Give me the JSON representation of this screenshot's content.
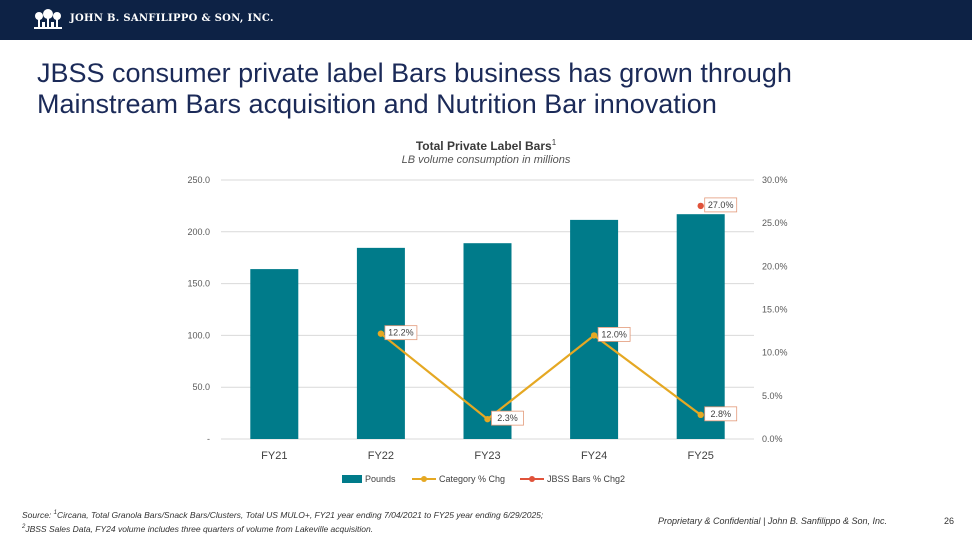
{
  "header": {
    "company": "JOHN B. SANFILIPPO & SON, INC.",
    "logo_icon": "tree-logo-icon"
  },
  "slide": {
    "title_line1": "JBSS consumer private label Bars business has grown through",
    "title_line2": "Mainstream Bars acquisition and Nutrition Bar innovation"
  },
  "chart_data": {
    "type": "bar",
    "title": "Total Private Label Bars",
    "title_superscript": "1",
    "subtitle": "LB volume consumption in millions",
    "categories": [
      "FY21",
      "FY22",
      "FY23",
      "FY24",
      "FY25"
    ],
    "series": [
      {
        "name": "Pounds",
        "type": "bar",
        "axis": "left",
        "color": "#007b8a",
        "values": [
          164.0,
          184.5,
          189.0,
          211.5,
          217.0
        ]
      },
      {
        "name": "Category % Chg",
        "type": "line",
        "axis": "right",
        "color": "#e5a823",
        "values": [
          null,
          12.2,
          2.3,
          12.0,
          2.8
        ],
        "labels": [
          null,
          "12.2%",
          "2.3%",
          "12.0%",
          "2.8%"
        ]
      },
      {
        "name": "JBSS Bars % Chg2",
        "type": "line",
        "axis": "right",
        "color": "#e0523a",
        "values": [
          null,
          null,
          null,
          null,
          27.0
        ],
        "labels": [
          null,
          null,
          null,
          null,
          "27.0%"
        ]
      }
    ],
    "y_left": {
      "min": 0,
      "max": 250,
      "ticks": [
        "-",
        "50.0",
        "100.0",
        "150.0",
        "200.0",
        "250.0"
      ]
    },
    "y_right": {
      "min": 0,
      "max": 30,
      "ticks": [
        "0.0%",
        "5.0%",
        "10.0%",
        "15.0%",
        "20.0%",
        "25.0%",
        "30.0%"
      ]
    },
    "grid": true,
    "legend_position": "bottom"
  },
  "footer": {
    "source_prefix": "Source: ",
    "source_sup1": "1",
    "source_line1": "Circana, Total Granola Bars/Snack Bars/Clusters, Total US MULO+, FY21 year ending 7/04/2021 to FY25 year ending 6/29/2025;",
    "source_sup2": "2",
    "source_line2": "JBSS Sales Data, FY24 volume includes three quarters of volume from Lakeville acquisition.",
    "confidential": "Proprietary & Confidential | John B. Sanfilippo & Son, Inc.",
    "page_number": "26"
  }
}
